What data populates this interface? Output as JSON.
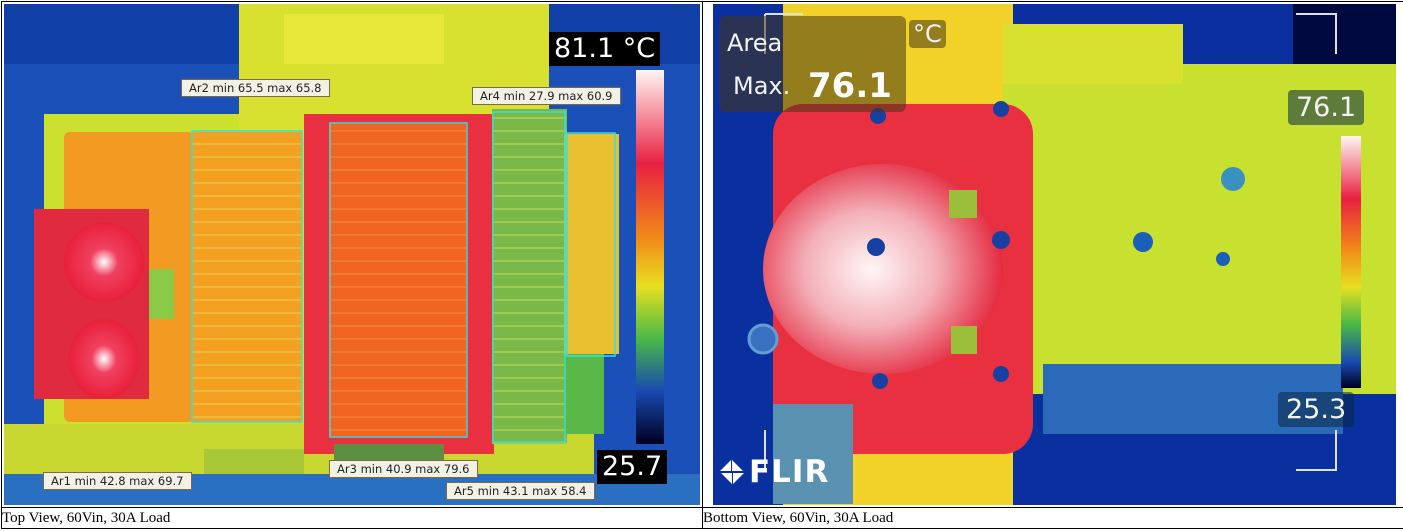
{
  "panels": [
    {
      "caption": "Top View, 60Vin, 30A Load",
      "scale_max": "81.1 °C",
      "scale_min": "25.7",
      "areas": [
        {
          "label": "Ar1 min 42.8 max 69.7"
        },
        {
          "label": "Ar2 min 65.5 max 65.8"
        },
        {
          "label": "Ar3 min 40.9 max 79.6"
        },
        {
          "label": "Ar4 min 27.9 max 60.9"
        },
        {
          "label": "Ar5 min 43.1 max 58.4"
        }
      ],
      "box_color": "#36e0d8"
    },
    {
      "caption": "Bottom View, 60Vin, 30A Load",
      "area_title": "Area",
      "max_label": "Max.",
      "max_value": "76.1",
      "unit": "°C",
      "scale_max": "76.1",
      "scale_min": "25.3",
      "brand": "FLIR"
    }
  ],
  "palette": {
    "hot": "#fff2f0",
    "red": "#e8243c",
    "orange": "#f07a18",
    "yellow": "#e8e018",
    "green": "#5fc040",
    "blue": "#1a5ab0",
    "navy": "#0a0a40"
  }
}
